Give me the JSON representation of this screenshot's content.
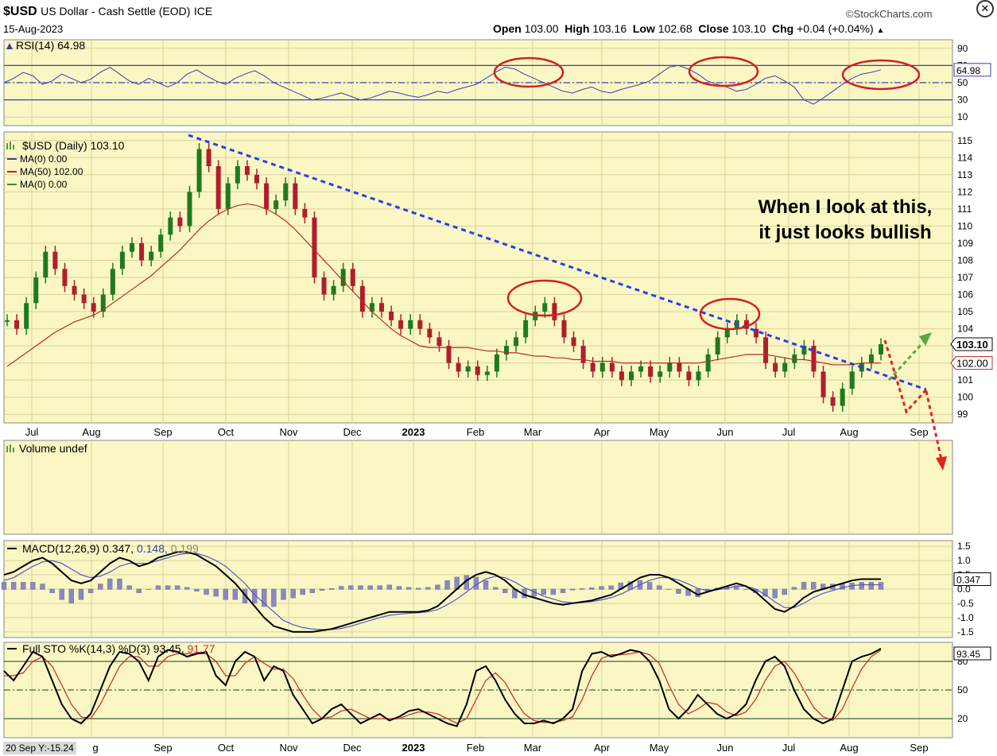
{
  "header": {
    "symbol": "$USD",
    "name": "US Dollar - Cash Settle (EOD)",
    "exchange": "ICE",
    "date": "15-Aug-2023",
    "source": "StockCharts.com",
    "open_label": "Open",
    "open": "103.00",
    "high_label": "High",
    "high": "103.16",
    "low_label": "Low",
    "low": "102.68",
    "close_label": "Close",
    "close": "103.10",
    "chg_label": "Chg",
    "chg": "+0.04 (+0.04%)",
    "chg_arrow": "▲"
  },
  "crosshair_readout": "20 Sep Y:-15.24",
  "annotation": {
    "line1": "When I look at this,",
    "line2": "it just looks bullish",
    "color": "#e8262a"
  },
  "colors": {
    "panel_bg": "#faf7c4",
    "grid": "#d8d39a",
    "line": "#3a3fb0",
    "ma50": "#c0282a",
    "trend": "#2a3df0",
    "circle": "#d21f24",
    "green_arrow": "#5aa83a",
    "red_arrow": "#e32222"
  },
  "chart_data": [
    {
      "type": "line",
      "panel": "rsi",
      "label": "RSI(14) 64.98",
      "ylim": [
        0,
        100
      ],
      "yticks": [
        "90",
        "70",
        "50",
        "30",
        "10"
      ],
      "ytick_values": [
        90,
        70,
        50,
        30,
        10
      ],
      "reference_lines": [
        70,
        50,
        30
      ],
      "current_label": "64.98",
      "values": [
        50,
        55,
        62,
        58,
        48,
        52,
        60,
        55,
        50,
        54,
        62,
        68,
        60,
        52,
        48,
        55,
        50,
        45,
        50,
        60,
        65,
        58,
        52,
        48,
        55,
        60,
        64,
        58,
        50,
        45,
        40,
        35,
        30,
        32,
        35,
        38,
        34,
        30,
        32,
        36,
        40,
        38,
        35,
        33,
        36,
        40,
        38,
        42,
        45,
        48,
        55,
        62,
        68,
        66,
        60,
        55,
        50,
        45,
        40,
        38,
        42,
        45,
        40,
        38,
        42,
        45,
        48,
        52,
        60,
        68,
        70,
        66,
        60,
        52,
        48,
        45,
        40,
        42,
        48,
        55,
        58,
        52,
        45,
        30,
        25,
        32,
        40,
        48,
        55,
        60,
        62,
        65
      ]
    },
    {
      "type": "candlestick",
      "panel": "price",
      "label": "$USD (Daily) 103.10",
      "legend": [
        {
          "name": "MA(0) 0.00",
          "color": "#3a3fb0"
        },
        {
          "name": "MA(50) 102.00",
          "color": "#c0282a"
        },
        {
          "name": "MA(0) 0.00",
          "color": "#3a8a3a"
        }
      ],
      "ylim": [
        98.5,
        115.5
      ],
      "yticks": [
        "115",
        "114",
        "113",
        "112",
        "111",
        "110",
        "109",
        "108",
        "107",
        "106",
        "105",
        "104",
        "103",
        "102",
        "101",
        "100",
        "99"
      ],
      "ytick_values": [
        115,
        114,
        113,
        112,
        111,
        110,
        109,
        108,
        107,
        106,
        105,
        104,
        103,
        102,
        101,
        100,
        99
      ],
      "x_labels": [
        "Jul",
        "Aug",
        "Sep",
        "Oct",
        "Nov",
        "Dec",
        "2023",
        "Feb",
        "Mar",
        "Apr",
        "May",
        "Jun",
        "Jul",
        "Aug",
        "Sep"
      ],
      "last_price_label": "103.10",
      "ma50_label": "102.00",
      "close": [
        104.5,
        104.0,
        105.5,
        107.0,
        108.5,
        107.5,
        106.5,
        106.0,
        105.5,
        105.0,
        106.0,
        107.5,
        108.5,
        109.0,
        108.0,
        108.5,
        109.5,
        110.5,
        110.0,
        112.0,
        114.5,
        113.5,
        111.0,
        112.5,
        113.5,
        113.0,
        112.5,
        111.0,
        111.5,
        112.5,
        111.0,
        110.5,
        107.0,
        106.0,
        106.5,
        107.5,
        106.5,
        105.0,
        105.5,
        105.0,
        104.5,
        104.0,
        104.5,
        104.0,
        103.5,
        103.0,
        102.0,
        101.5,
        101.8,
        101.3,
        101.5,
        102.5,
        103.0,
        103.5,
        104.5,
        105.0,
        105.5,
        104.5,
        103.5,
        103.0,
        102.0,
        101.5,
        102.0,
        101.5,
        101.0,
        101.5,
        101.8,
        101.2,
        101.5,
        102.0,
        101.5,
        101.0,
        101.5,
        102.5,
        103.5,
        104.0,
        104.5,
        104.0,
        103.5,
        102.0,
        101.5,
        102.0,
        102.5,
        103.0,
        101.5,
        100.0,
        99.5,
        100.5,
        101.5,
        102.0,
        102.5,
        103.1
      ],
      "ma50": [
        101.8,
        102.2,
        102.6,
        103.0,
        103.4,
        103.8,
        104.1,
        104.4,
        104.6,
        104.8,
        105.1,
        105.5,
        105.9,
        106.3,
        106.7,
        107.1,
        107.6,
        108.1,
        108.6,
        109.2,
        109.8,
        110.3,
        110.7,
        111.0,
        111.2,
        111.3,
        111.2,
        111.0,
        110.7,
        110.3,
        109.8,
        109.2,
        108.6,
        108.0,
        107.4,
        106.8,
        106.2,
        105.6,
        105.0,
        104.5,
        104.0,
        103.6,
        103.3,
        103.0,
        102.9,
        102.9,
        102.9,
        102.9,
        102.9,
        102.8,
        102.7,
        102.7,
        102.6,
        102.6,
        102.5,
        102.4,
        102.4,
        102.3,
        102.3,
        102.2,
        102.2,
        102.1,
        102.1,
        102.1,
        102.0,
        102.0,
        102.0,
        102.0,
        102.0,
        102.0,
        102.0,
        102.0,
        102.0,
        102.1,
        102.2,
        102.3,
        102.4,
        102.5,
        102.5,
        102.5,
        102.4,
        102.3,
        102.2,
        102.2,
        102.1,
        102.0,
        101.9,
        101.9,
        101.9,
        102.0,
        102.0,
        102.0
      ]
    },
    {
      "type": "bar",
      "panel": "volume",
      "label": "Volume undef",
      "values": []
    },
    {
      "type": "line",
      "panel": "macd",
      "label": "MACD(12,26,9) 0.347,",
      "signal_label": " 0.148,",
      "hist_label": " 0.199",
      "ylim": [
        -1.7,
        1.7
      ],
      "yticks": [
        "1.5",
        "1.0",
        "0.5",
        "0.0",
        "-0.5",
        "-1.0",
        "-1.5"
      ],
      "ytick_values": [
        1.5,
        1.0,
        0.5,
        0.0,
        -0.5,
        -1.0,
        -1.5
      ],
      "current_label": "0.347",
      "series": [
        {
          "name": "MACD",
          "values": [
            0.5,
            0.6,
            0.8,
            1.0,
            1.1,
            0.9,
            0.6,
            0.3,
            0.2,
            0.3,
            0.6,
            0.9,
            1.1,
            1.0,
            0.8,
            0.9,
            1.1,
            1.2,
            1.3,
            1.3,
            1.2,
            1.0,
            0.8,
            0.5,
            0.2,
            -0.2,
            -0.6,
            -1.0,
            -1.3,
            -1.4,
            -1.5,
            -1.5,
            -1.5,
            -1.45,
            -1.4,
            -1.3,
            -1.2,
            -1.1,
            -1.0,
            -0.9,
            -0.8,
            -0.8,
            -0.8,
            -0.8,
            -0.75,
            -0.6,
            -0.3,
            0.0,
            0.3,
            0.5,
            0.6,
            0.5,
            0.3,
            0.0,
            -0.2,
            -0.3,
            -0.4,
            -0.5,
            -0.55,
            -0.5,
            -0.45,
            -0.4,
            -0.3,
            -0.2,
            0.0,
            0.2,
            0.4,
            0.5,
            0.5,
            0.4,
            0.2,
            0.0,
            -0.2,
            -0.1,
            0.0,
            0.1,
            0.2,
            0.1,
            -0.1,
            -0.4,
            -0.7,
            -0.8,
            -0.6,
            -0.3,
            -0.1,
            0.0,
            0.1,
            0.2,
            0.3,
            0.35,
            0.35,
            0.347
          ]
        },
        {
          "name": "Signal",
          "values": [
            0.3,
            0.4,
            0.6,
            0.8,
            0.95,
            1.0,
            0.9,
            0.7,
            0.5,
            0.4,
            0.45,
            0.6,
            0.8,
            0.9,
            0.9,
            0.9,
            1.0,
            1.1,
            1.2,
            1.25,
            1.25,
            1.15,
            1.0,
            0.8,
            0.5,
            0.2,
            -0.2,
            -0.5,
            -0.8,
            -1.1,
            -1.25,
            -1.35,
            -1.4,
            -1.42,
            -1.42,
            -1.38,
            -1.3,
            -1.2,
            -1.1,
            -1.0,
            -0.92,
            -0.88,
            -0.85,
            -0.83,
            -0.8,
            -0.72,
            -0.55,
            -0.35,
            -0.1,
            0.15,
            0.35,
            0.45,
            0.4,
            0.25,
            0.05,
            -0.1,
            -0.25,
            -0.35,
            -0.45,
            -0.48,
            -0.47,
            -0.44,
            -0.38,
            -0.3,
            -0.18,
            -0.02,
            0.15,
            0.3,
            0.4,
            0.4,
            0.32,
            0.18,
            0.02,
            -0.05,
            -0.03,
            0.03,
            0.1,
            0.1,
            0.0,
            -0.2,
            -0.45,
            -0.65,
            -0.65,
            -0.5,
            -0.3,
            -0.15,
            -0.05,
            0.05,
            0.12,
            0.15,
            0.15,
            0.148
          ]
        }
      ]
    },
    {
      "type": "line",
      "panel": "stochastic",
      "label": "Full STO %K(14,3) %D(3) 93.45,",
      "d_label": " 91.77",
      "ylim": [
        0,
        100
      ],
      "yticks": [
        "80",
        "50",
        "20"
      ],
      "ytick_values": [
        80,
        50,
        20
      ],
      "reference_lines": [
        80,
        50,
        20
      ],
      "current_label": "93.45",
      "series": [
        {
          "name": "%K",
          "values": [
            70,
            60,
            75,
            90,
            85,
            60,
            35,
            20,
            15,
            25,
            50,
            75,
            90,
            88,
            80,
            60,
            85,
            92,
            90,
            85,
            88,
            90,
            65,
            55,
            80,
            90,
            85,
            60,
            75,
            70,
            45,
            30,
            15,
            20,
            30,
            35,
            25,
            15,
            20,
            25,
            18,
            22,
            28,
            30,
            25,
            20,
            15,
            12,
            35,
            70,
            75,
            60,
            40,
            25,
            15,
            15,
            18,
            15,
            20,
            30,
            70,
            88,
            90,
            85,
            88,
            92,
            90,
            80,
            60,
            30,
            20,
            30,
            45,
            35,
            25,
            20,
            25,
            35,
            60,
            80,
            85,
            75,
            50,
            30,
            20,
            15,
            20,
            50,
            80,
            85,
            88,
            93.45
          ]
        },
        {
          "name": "%D",
          "values": [
            65,
            65,
            68,
            80,
            85,
            75,
            55,
            35,
            22,
            20,
            35,
            55,
            75,
            85,
            85,
            75,
            75,
            85,
            88,
            88,
            88,
            88,
            80,
            65,
            65,
            78,
            85,
            78,
            72,
            72,
            62,
            45,
            30,
            20,
            22,
            28,
            30,
            25,
            20,
            20,
            20,
            20,
            24,
            27,
            27,
            25,
            20,
            15,
            20,
            40,
            60,
            68,
            58,
            40,
            25,
            18,
            16,
            16,
            18,
            22,
            40,
            65,
            83,
            87,
            87,
            88,
            90,
            87,
            78,
            55,
            35,
            25,
            30,
            37,
            35,
            27,
            23,
            27,
            40,
            60,
            75,
            80,
            68,
            50,
            32,
            22,
            18,
            30,
            52,
            72,
            85,
            91.77
          ]
        }
      ]
    }
  ],
  "bottom_axis_labels": [
    "g",
    "Sep",
    "Oct",
    "Nov",
    "Dec",
    "2023",
    "Feb",
    "Mar",
    "Apr",
    "May",
    "Jun",
    "Jul",
    "Aug",
    "Sep"
  ]
}
